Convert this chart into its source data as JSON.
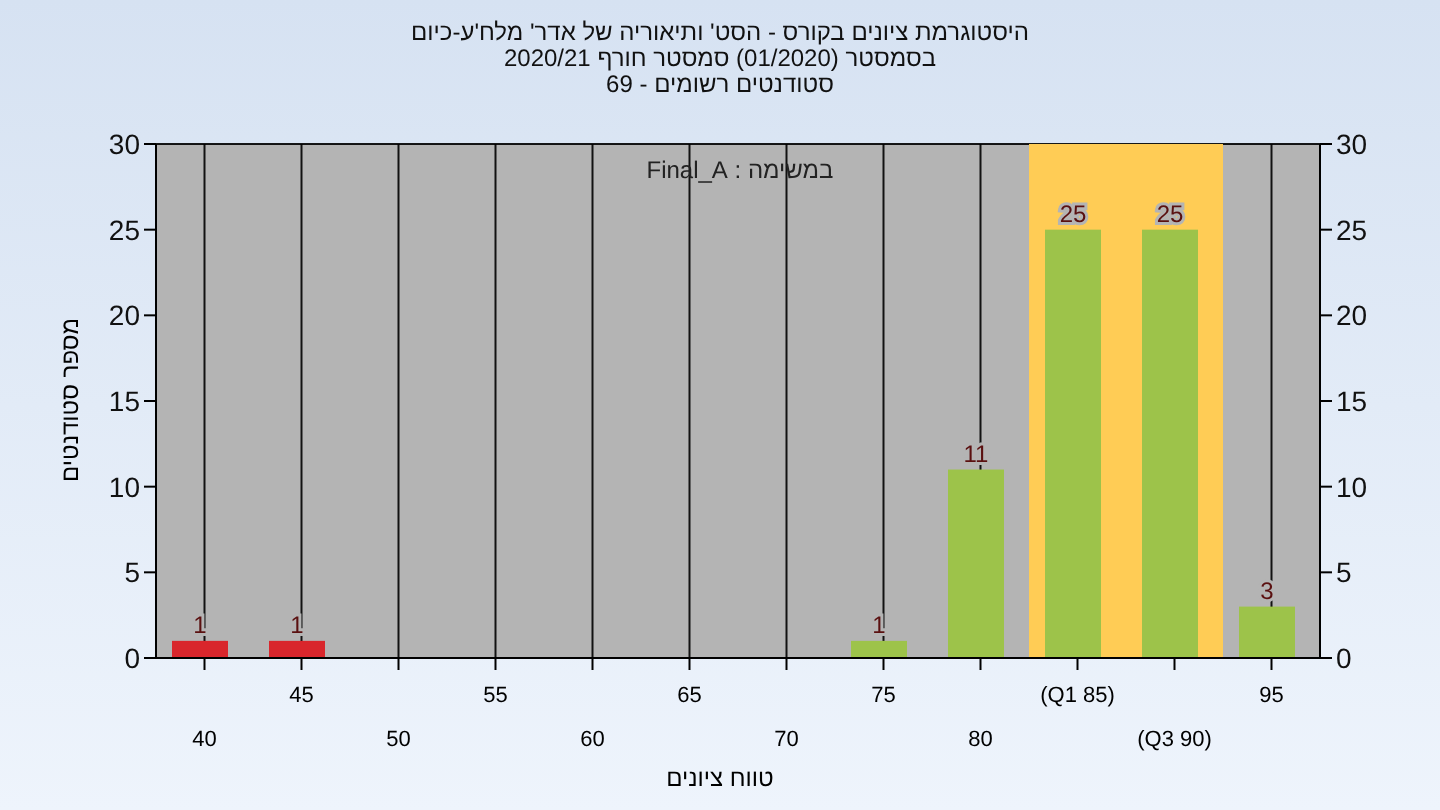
{
  "chart_data": {
    "type": "bar",
    "title": "היסטוגרמת ציונים בקורס - הסט' ותיאוריה של אדר' מלח'ע-כיום",
    "subtitle": "בסמסטר  (01/2020)  סמסטר חורף  2020/21",
    "annotations": [
      "סטודנטים רשומים - 69",
      "במשימה : Final_A"
    ],
    "xlabel": "טווח ציונים",
    "ylabel": "מספר סטודנטים",
    "categories": [
      "40",
      "45",
      "50",
      "55",
      "60",
      "65",
      "70",
      "75",
      "80",
      "(Q1 85)",
      "(Q3 90)",
      "95"
    ],
    "values": [
      1,
      1,
      0,
      0,
      0,
      0,
      0,
      1,
      11,
      25,
      25,
      3
    ],
    "value_labels": [
      "1",
      "1",
      null,
      null,
      null,
      null,
      null,
      "1",
      "11",
      "25",
      "25",
      "3"
    ],
    "colors": [
      "#d9262c",
      "#d9262c",
      "#9dc34a",
      "#9dc34a",
      "#9dc34a",
      "#9dc34a",
      "#9dc34a",
      "#9dc34a",
      "#9dc34a",
      "#9dc34a",
      "#9dc34a",
      "#9dc34a"
    ],
    "bands": [
      {
        "axis": "x",
        "from": "(Q1 85)",
        "to": "(Q3 90)",
        "color": "#ffcc55"
      }
    ],
    "ylim": [
      0,
      30
    ],
    "yticks": [
      0,
      5,
      10,
      15,
      20,
      25,
      30
    ],
    "y2lim": [
      0,
      30
    ],
    "y2ticks": [
      0,
      5,
      10,
      15,
      20,
      25,
      30
    ],
    "grid": true
  }
}
